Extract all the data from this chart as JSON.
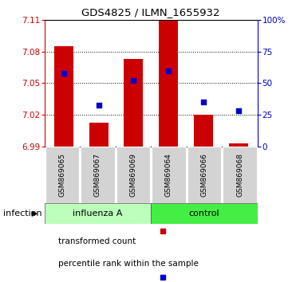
{
  "title": "GDS4825 / ILMN_1655932",
  "samples": [
    "GSM869065",
    "GSM869067",
    "GSM869069",
    "GSM869064",
    "GSM869066",
    "GSM869068"
  ],
  "bar_values": [
    7.085,
    7.013,
    7.073,
    7.109,
    7.02,
    6.993
  ],
  "bar_baseline": 6.99,
  "percentile_values": [
    58,
    33,
    52,
    60,
    35,
    28
  ],
  "groups": [
    {
      "label": "influenza A",
      "indices": [
        0,
        1,
        2
      ],
      "color": "#bbffbb"
    },
    {
      "label": "control",
      "indices": [
        3,
        4,
        5
      ],
      "color": "#44ee44"
    }
  ],
  "group_label": "infection",
  "left_axis_color": "#cc0000",
  "right_axis_color": "#0000cc",
  "bar_color": "#cc0000",
  "dot_color": "#0000cc",
  "ylim_left": [
    6.99,
    7.11
  ],
  "ylim_right": [
    0,
    100
  ],
  "yticks_left": [
    6.99,
    7.02,
    7.05,
    7.08,
    7.11
  ],
  "yticks_right": [
    0,
    25,
    50,
    75,
    100
  ],
  "ytick_labels_right": [
    "0",
    "25",
    "50",
    "75",
    "100%"
  ],
  "bar_width": 0.55,
  "legend_items": [
    {
      "label": "transformed count",
      "color": "#cc0000",
      "marker": "s"
    },
    {
      "label": "percentile rank within the sample",
      "color": "#0000cc",
      "marker": "s"
    }
  ]
}
